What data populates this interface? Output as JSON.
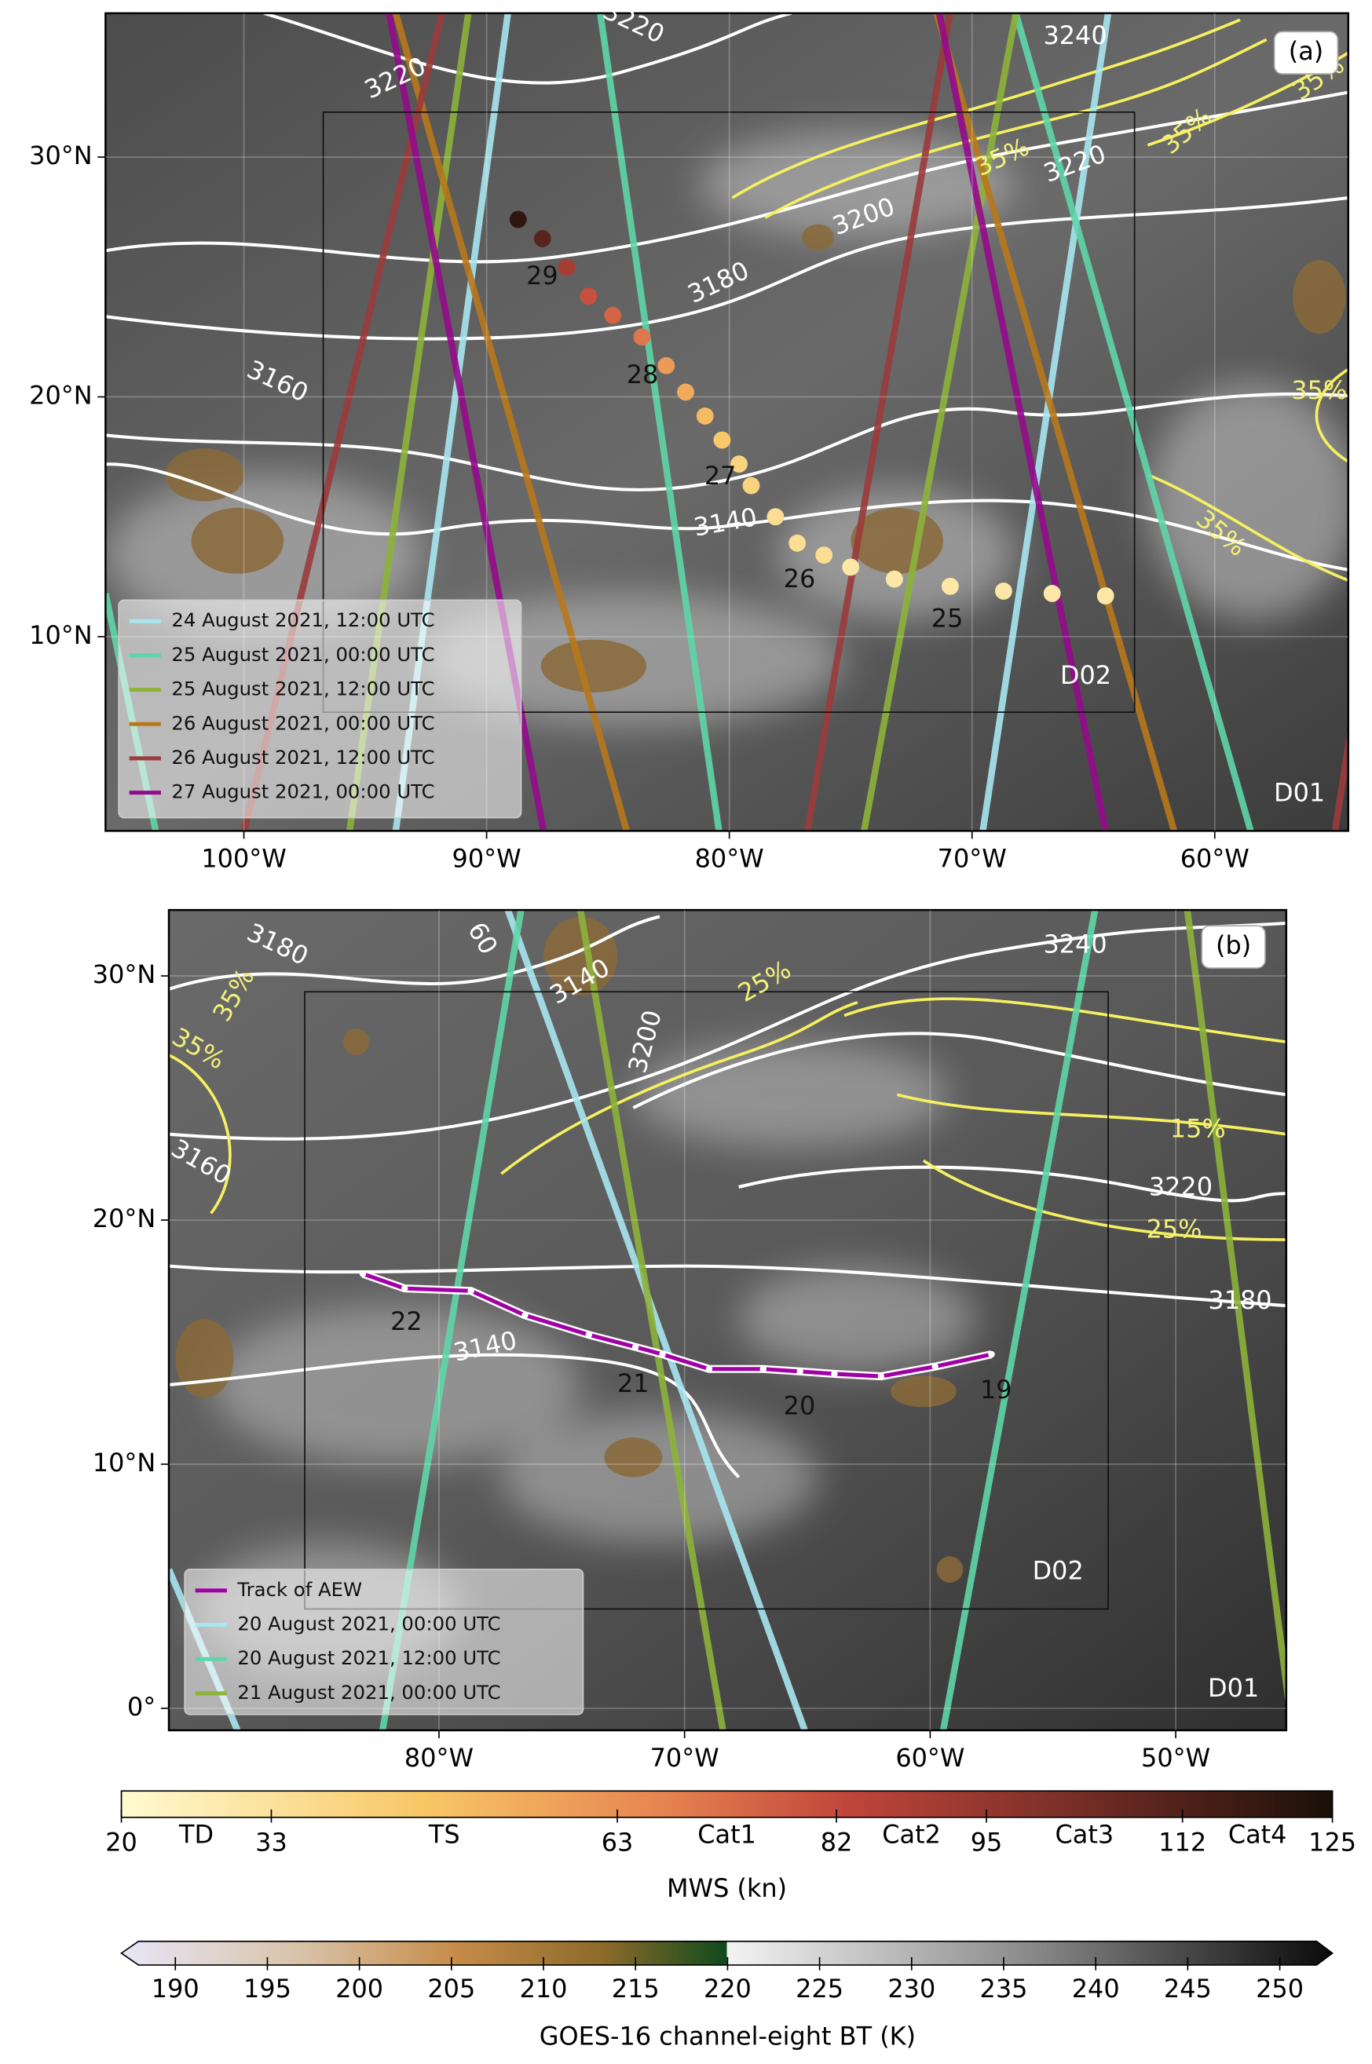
{
  "panels": [
    {
      "label": "(a)",
      "xlim": [
        -105.7,
        -54.5
      ],
      "ylim": [
        1.9,
        36
      ],
      "xticks": [
        {
          "value": -100,
          "label": "100°W"
        },
        {
          "value": -90,
          "label": "90°W"
        },
        {
          "value": -80,
          "label": "80°W"
        },
        {
          "value": -70,
          "label": "70°W"
        },
        {
          "value": -60,
          "label": "60°W"
        }
      ],
      "yticks": [
        {
          "value": 10,
          "label": "10°N"
        },
        {
          "value": 20,
          "label": "20°N"
        },
        {
          "value": 30,
          "label": "30°N"
        }
      ],
      "domains": [
        "D02",
        "D01"
      ],
      "legend": [
        {
          "name": "24 August 2021, 12:00 UTC",
          "color": "#a8e6f0"
        },
        {
          "name": "25 August 2021, 00:00 UTC",
          "color": "#5fd6a8"
        },
        {
          "name": "25 August 2021, 12:00 UTC",
          "color": "#8db33a"
        },
        {
          "name": "26 August 2021, 00:00 UTC",
          "color": "#b8781a"
        },
        {
          "name": "26 August 2021, 12:00 UTC",
          "color": "#9b3b3b"
        },
        {
          "name": "27 August 2021, 00:00 UTC",
          "color": "#950a8c"
        }
      ],
      "track": {
        "lon": [
          -64.5,
          -66.7,
          -68.7,
          -70.9,
          -73.2,
          -75.0,
          -76.1,
          -77.2,
          -78.1,
          -79.1,
          -79.6,
          -80.3,
          -81.0,
          -81.8,
          -82.6,
          -83.6,
          -84.8,
          -85.8,
          -86.7,
          -87.7,
          -88.7
        ],
        "lat": [
          11.7,
          11.8,
          11.9,
          12.1,
          12.4,
          12.9,
          13.4,
          13.9,
          15.0,
          16.3,
          17.2,
          18.2,
          19.2,
          20.2,
          21.3,
          22.5,
          23.4,
          24.2,
          25.4,
          26.6,
          27.4
        ],
        "mws": [
          30,
          30,
          30,
          30,
          30,
          30,
          35,
          35,
          35,
          40,
          40,
          45,
          50,
          55,
          60,
          70,
          75,
          80,
          90,
          110,
          120
        ]
      },
      "day_labels": [
        "25",
        "26",
        "27",
        "28",
        "29"
      ],
      "contour_labels": [
        "3220",
        "3220",
        "3240",
        "3220",
        "3200",
        "3180",
        "3160",
        "3140"
      ],
      "humidity_labels": [
        "35%",
        "35%",
        "35%",
        "35%",
        "35%"
      ]
    },
    {
      "label": "(b)",
      "xlim": [
        -91.0,
        -45.5
      ],
      "ylim": [
        -0.9,
        32.7
      ],
      "xticks": [
        {
          "value": -80,
          "label": "80°W"
        },
        {
          "value": -70,
          "label": "70°W"
        },
        {
          "value": -60,
          "label": "60°W"
        },
        {
          "value": -50,
          "label": "50°W"
        }
      ],
      "yticks": [
        {
          "value": 0,
          "label": "0°"
        },
        {
          "value": 10,
          "label": "10°N"
        },
        {
          "value": 20,
          "label": "20°N"
        },
        {
          "value": 30,
          "label": "30°N"
        }
      ],
      "domains": [
        "D02",
        "D01"
      ],
      "legend": [
        {
          "name": "Track of AEW",
          "color": "#a100a6"
        },
        {
          "name": "20 August 2021, 00:00 UTC",
          "color": "#a8e6f0"
        },
        {
          "name": "20 August 2021, 12:00 UTC",
          "color": "#5fd6a8"
        },
        {
          "name": "21 August 2021, 00:00 UTC",
          "color": "#8db33a"
        }
      ],
      "track": {
        "lon": [
          -83.1,
          -81.4,
          -78.7,
          -76.5,
          -73.9,
          -72.0,
          -70.9,
          -69.0,
          -66.8,
          -65.3,
          -63.9,
          -62.0,
          -59.8,
          -57.5
        ],
        "lat": [
          17.8,
          17.2,
          17.1,
          16.1,
          15.3,
          14.8,
          14.5,
          13.9,
          13.9,
          13.8,
          13.7,
          13.6,
          14.0,
          14.5
        ]
      },
      "day_labels": [
        "22",
        "21",
        "20",
        "19"
      ],
      "contour_labels": [
        "3180",
        "3140",
        "3200",
        "3240",
        "3220",
        "3180",
        "3140",
        "3160",
        "60"
      ],
      "humidity_labels": [
        "35%",
        "35%",
        "25%",
        "15%",
        "25%"
      ]
    }
  ],
  "colorbars": [
    {
      "label": "MWS (kn)",
      "lim": [
        20,
        125
      ],
      "ticks": [
        20,
        33,
        63,
        82,
        95,
        112,
        125
      ],
      "categories": [
        "TD",
        "TS",
        "Cat1",
        "Cat2",
        "Cat3",
        "Cat4"
      ]
    },
    {
      "label": "GOES-16 channel-eight BT (K)",
      "lim": [
        188,
        252
      ],
      "ticks": [
        190,
        195,
        200,
        205,
        210,
        215,
        220,
        225,
        230,
        235,
        240,
        245,
        250
      ]
    }
  ]
}
